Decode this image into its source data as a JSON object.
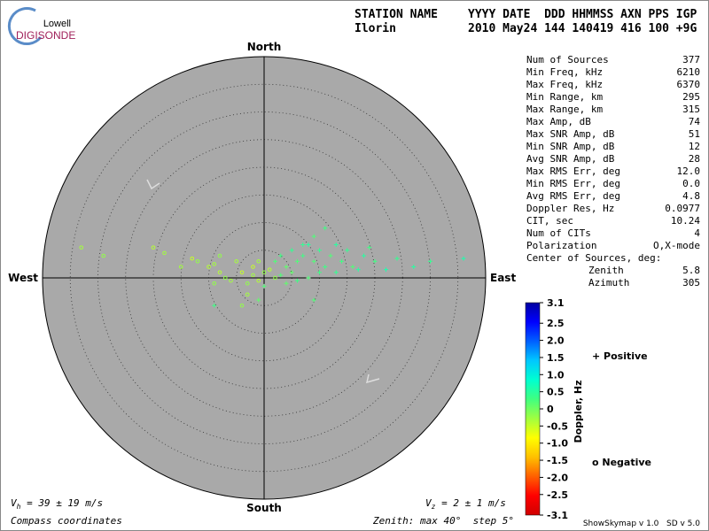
{
  "logo": {
    "line1": "Lowell",
    "line2": "DIGISONDE"
  },
  "header": {
    "label1": "STATION NAME",
    "label2": "YYYY DATE  DDD HHMMSS AXN PPS IGP",
    "value1": "Ilorin",
    "value2": "2010 May24 144 140419 416 100 +9G"
  },
  "stats": {
    "rows": [
      [
        "Num of Sources",
        "377"
      ],
      [
        "Min Freq, kHz",
        "6210"
      ],
      [
        "Max Freq, kHz",
        "6370"
      ],
      [
        "Min Range, km",
        "295"
      ],
      [
        "Max Range, km",
        "315"
      ],
      [
        "Max Amp, dB",
        "74"
      ],
      [
        "Max SNR Amp, dB",
        "51"
      ],
      [
        "Min SNR Amp, dB",
        "12"
      ],
      [
        "Avg SNR Amp, dB",
        "28"
      ],
      [
        "Max RMS Err, deg",
        "12.0"
      ],
      [
        "Min RMS Err, deg",
        "0.0"
      ],
      [
        "Avg RMS Err, deg",
        "4.8"
      ],
      [
        "Doppler Res, Hz",
        "0.0977"
      ],
      [
        "CIT, sec",
        "10.24"
      ],
      [
        "Num of CITs",
        "4"
      ],
      [
        "Polarization",
        "O,X-mode"
      ]
    ],
    "center_label": "Center of Sources, deg:",
    "zenith": [
      "Zenith",
      "5.8"
    ],
    "azimuth": [
      "Azimuth",
      "305"
    ]
  },
  "chart_data": {
    "type": "skymap",
    "north": "North",
    "south": "South",
    "west": "West",
    "east": "East",
    "zenith_max": 40,
    "ring_step": 5,
    "xlim": [
      -40,
      40
    ],
    "ylim": [
      -40,
      40
    ],
    "x": [
      -33,
      -29,
      -20,
      -18,
      -13,
      -12,
      -9,
      -8,
      -7,
      -5,
      -4,
      -3,
      -2,
      -1,
      0,
      -6,
      -4,
      -10,
      -15,
      -9,
      -2,
      -3,
      2,
      1,
      -1,
      -8,
      2,
      3,
      4,
      5,
      6,
      7,
      8,
      9,
      10,
      11,
      12,
      13,
      14,
      15,
      16,
      18,
      20,
      22,
      24,
      27,
      30,
      36,
      11,
      9,
      7,
      5,
      3,
      6,
      8,
      4,
      10,
      13,
      17,
      19,
      0,
      -1,
      -9,
      9
    ],
    "y": [
      5.5,
      4,
      5.5,
      4.5,
      3.5,
      3,
      2.5,
      1,
      0,
      3,
      1,
      -1,
      0.5,
      -0.5,
      1,
      -0.5,
      -5,
      2,
      2,
      -1,
      2,
      -3,
      0,
      1.5,
      3,
      4,
      3,
      4,
      2,
      5,
      3,
      4,
      6,
      3,
      5,
      2,
      4,
      6,
      3,
      5,
      2,
      4,
      3,
      1.5,
      3.5,
      2,
      3,
      3.5,
      9,
      7.5,
      6,
      1,
      0.5,
      -0.5,
      0,
      -1,
      1,
      1,
      1.5,
      5.5,
      -1.5,
      -4,
      -5,
      -4
    ],
    "doppler": [
      -0.3,
      -0.2,
      -0.4,
      -0.3,
      -0.5,
      -0.2,
      -0.3,
      -0.4,
      -0.2,
      -0.3,
      -0.5,
      -0.2,
      -0.3,
      -0.4,
      -0.2,
      -0.3,
      -0.2,
      -0.4,
      -0.3,
      -0.2,
      -0.5,
      -0.3,
      -0.2,
      -0.4,
      -0.3,
      -0.2,
      0.2,
      0.3,
      0.1,
      0.4,
      0.2,
      0.3,
      0.5,
      0.2,
      0.4,
      0.3,
      0.2,
      0.5,
      0.3,
      0.4,
      0.2,
      0.5,
      0.3,
      0.6,
      0.4,
      0.5,
      0.4,
      0.6,
      0.3,
      0.2,
      0.4,
      0.1,
      0.2,
      0.3,
      0.2,
      0.1,
      0.3,
      0.4,
      0.5,
      0.3,
      0.2,
      0.1,
      0.3,
      0.2
    ],
    "vh": {
      "symbol": "V",
      "sub": "h",
      "text": " = 39 ± 19 m/s"
    },
    "vz": {
      "symbol": "V",
      "sub": "z",
      "text": " = 2 ± 1 m/s"
    },
    "coords": "Compass coordinates",
    "zenith_note": "Zenith: max 40°  step 5°"
  },
  "colorbar": {
    "title": "Doppler, Hz",
    "lim": [
      -3.1,
      3.1
    ],
    "colormap": [
      "#0000a0",
      "#0000ff",
      "#0060ff",
      "#00c8ff",
      "#00ffd0",
      "#40ff80",
      "#a0ff40",
      "#ffff00",
      "#ffc000",
      "#ff6000",
      "#ff0000",
      "#d00000"
    ],
    "ticks": [
      3.1,
      2.5,
      {
        "value": 2,
        "label": "2.0"
      },
      1.5,
      {
        "value": 1,
        "label": "1.0"
      },
      0.5,
      0,
      -0.5,
      {
        "value": -1,
        "label": "-1.0"
      },
      -1.5,
      {
        "value": -2,
        "label": "-2.0"
      },
      -2.5,
      -3.1
    ],
    "positive": "+ Positive",
    "negative": "o Negative",
    "positive_color": "#0000c0",
    "negative_color": "#d00000"
  },
  "footer": "ShowSkymap v 1.0   SD v 5.0"
}
